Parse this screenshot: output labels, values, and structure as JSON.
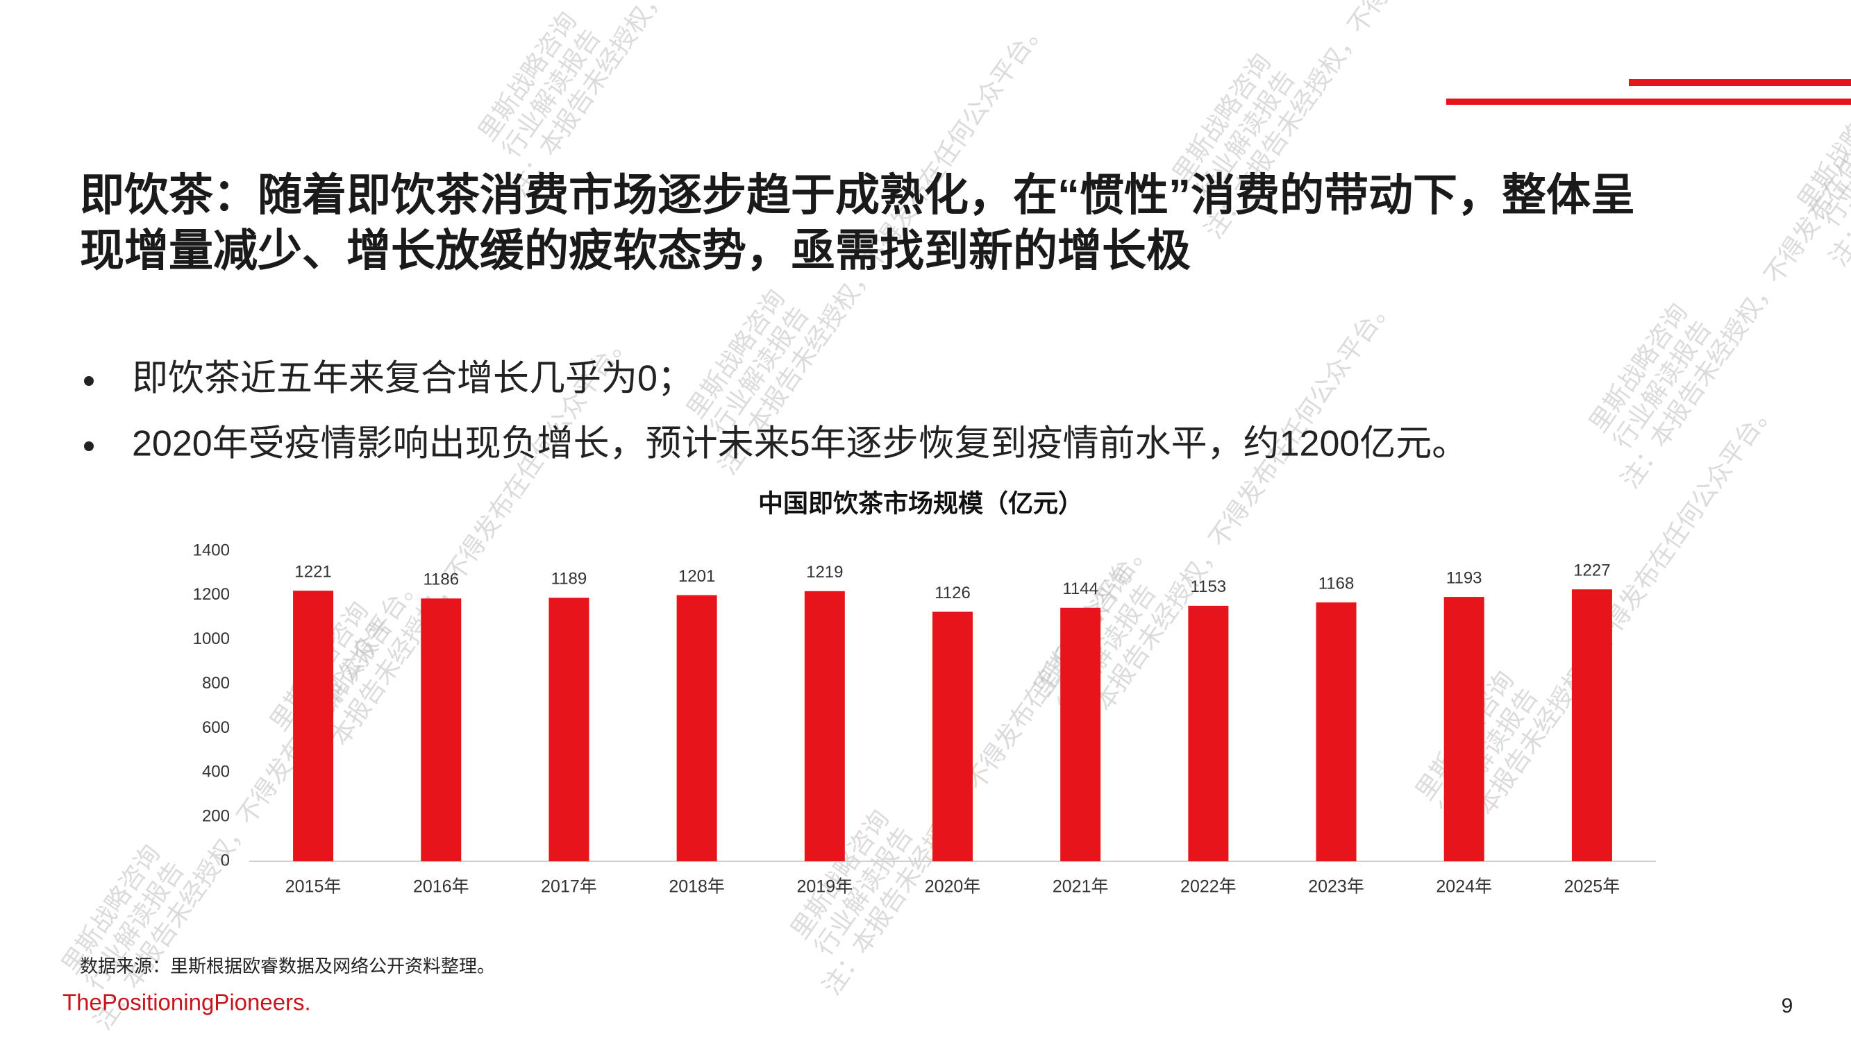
{
  "header": {
    "title": [
      "即饮茶：随着即饮茶消费市场逐步趋于成熟化，在“惯性”消费的带动下，整体呈",
      "现增量减少、增长放缓的疲软态势，亟需找到新的增长极"
    ]
  },
  "bullets": [
    "即饮茶近五年来复合增长几乎为0；",
    "2020年受疫情影响出现负增长，预计未来5年逐步恢复到疫情前水平，约1200亿元。"
  ],
  "chart_data": {
    "type": "bar",
    "title": "中国即饮茶市场规模（亿元）",
    "categories": [
      "2015年",
      "2016年",
      "2017年",
      "2018年",
      "2019年",
      "2020年",
      "2021年",
      "2022年",
      "2023年",
      "2024年",
      "2025年"
    ],
    "values": [
      1221,
      1186,
      1189,
      1201,
      1219,
      1126,
      1144,
      1153,
      1168,
      1193,
      1227
    ],
    "color": "#e8141c",
    "ylim": [
      0,
      1400
    ],
    "yticks": [
      0,
      200,
      400,
      600,
      800,
      1000,
      1200,
      1400
    ],
    "grid": false
  },
  "source": "数据来源：里斯根据欧睿数据及网络公开资料整理。",
  "brand": "ThePositioningPioneers.",
  "page_number": "9",
  "watermark": [
    "里斯战略咨询",
    "行业解读报告",
    "注：本报告未经授权，不得发布在任何公众平台。"
  ]
}
